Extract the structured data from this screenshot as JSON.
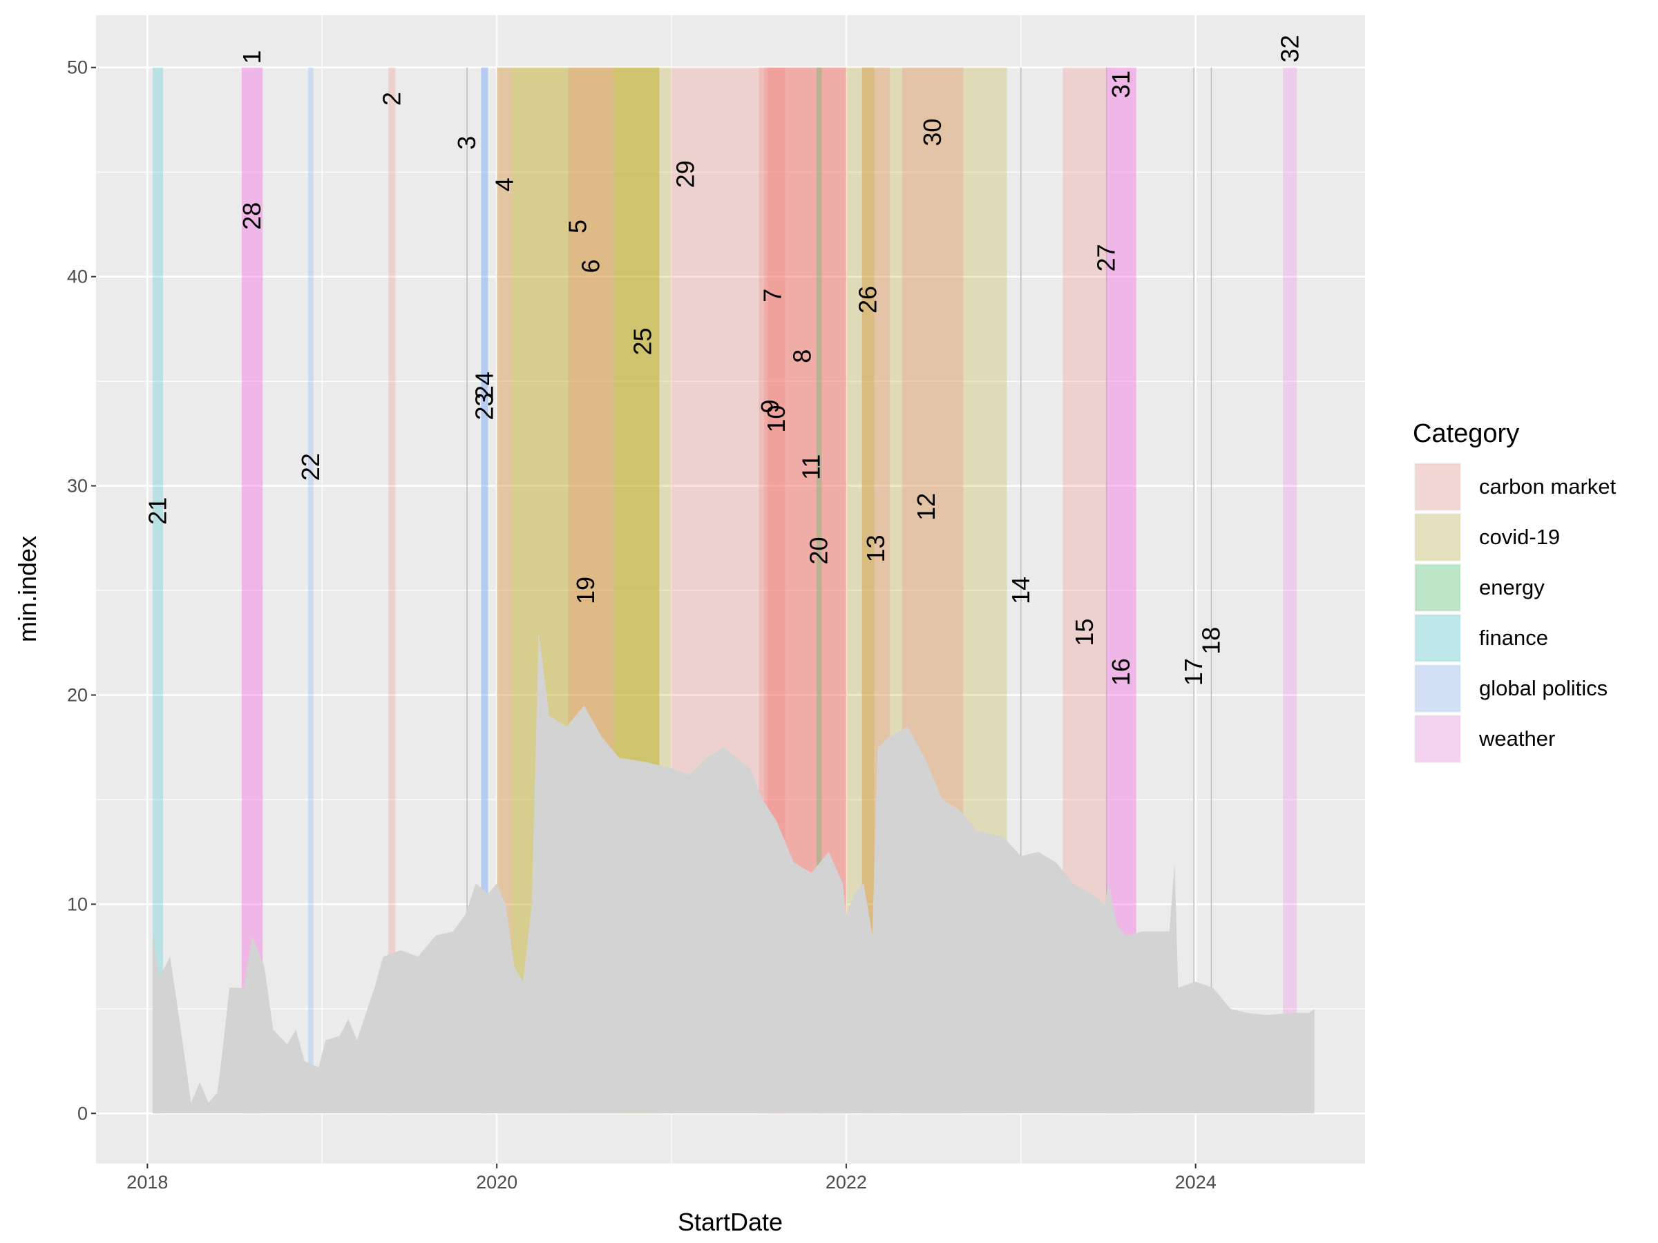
{
  "chart_data": {
    "type": "area",
    "x_label": "StartDate",
    "y_label": "min.index",
    "xlim": [
      2017.706,
      2024.97
    ],
    "ylim": [
      -2.4,
      52.5
    ],
    "xticks": [
      2018,
      2020,
      2022,
      2024
    ],
    "yticks": [
      0,
      10,
      20,
      30,
      40,
      50
    ],
    "grid": true,
    "legend_title": "Category",
    "legend_position": "right",
    "legend": [
      {
        "name": "carbon market",
        "color": "#F8766D"
      },
      {
        "name": "covid-19",
        "color": "#B79F00"
      },
      {
        "name": "energy",
        "color": "#00BA38"
      },
      {
        "name": "finance",
        "color": "#00BFC4"
      },
      {
        "name": "global politics",
        "color": "#619CFF"
      },
      {
        "name": "weather",
        "color": "#F564E3"
      }
    ],
    "area": {
      "color": "#d3d3d3",
      "x": [
        2018.03,
        2018.07,
        2018.13,
        2018.2,
        2018.25,
        2018.3,
        2018.35,
        2018.4,
        2018.43,
        2018.47,
        2018.55,
        2018.6,
        2018.67,
        2018.72,
        2018.8,
        2018.85,
        2018.9,
        2018.98,
        2019.02,
        2019.1,
        2019.15,
        2019.2,
        2019.3,
        2019.35,
        2019.45,
        2019.55,
        2019.65,
        2019.75,
        2019.82,
        2019.88,
        2019.95,
        2020.0,
        2020.05,
        2020.1,
        2020.15,
        2020.2,
        2020.24,
        2020.3,
        2020.4,
        2020.5,
        2020.6,
        2020.7,
        2020.85,
        2021.0,
        2021.1,
        2021.2,
        2021.3,
        2021.45,
        2021.52,
        2021.6,
        2021.7,
        2021.8,
        2021.9,
        2021.98,
        2022.0,
        2022.05,
        2022.1,
        2022.15,
        2022.18,
        2022.25,
        2022.35,
        2022.45,
        2022.55,
        2022.65,
        2022.75,
        2022.9,
        2023.0,
        2023.1,
        2023.2,
        2023.3,
        2023.4,
        2023.48,
        2023.5,
        2023.55,
        2023.6,
        2023.7,
        2023.85,
        2023.88,
        2023.9,
        2024.0,
        2024.1,
        2024.2,
        2024.3,
        2024.4,
        2024.55,
        2024.65,
        2024.68
      ],
      "values": [
        8.5,
        6.5,
        7.5,
        3.5,
        0.5,
        1.5,
        0.5,
        1,
        3,
        6,
        6,
        8.5,
        7,
        4,
        3.3,
        4,
        2.5,
        2.2,
        3.5,
        3.7,
        4.5,
        3.5,
        6,
        7.5,
        7.8,
        7.5,
        8.5,
        8.7,
        9.5,
        11,
        10.5,
        11,
        10,
        7,
        6.3,
        10,
        23,
        19,
        18.5,
        19.5,
        18,
        17,
        16.8,
        16.5,
        16.2,
        17,
        17.5,
        16.5,
        15,
        14,
        12,
        11.5,
        12.5,
        11,
        9.5,
        10.5,
        11,
        8.5,
        17.5,
        18,
        18.5,
        17,
        15,
        14.5,
        13.5,
        13.2,
        12.3,
        12.5,
        12,
        11,
        10.5,
        10,
        11,
        9,
        8.5,
        8.7,
        8.7,
        12,
        6,
        6.3,
        6,
        5,
        4.8,
        4.7,
        4.8,
        4.8,
        5
      ]
    },
    "events": [
      {
        "label": "21",
        "start": 2018.03,
        "end": 2018.09,
        "category": "finance",
        "label_y": 28.8
      },
      {
        "label": "1",
        "start": 2018.54,
        "end": 2018.66,
        "category": "weather",
        "label_y": 50.5
      },
      {
        "label": "28",
        "start": 2018.54,
        "end": 2018.66,
        "category": "weather",
        "label_y": 42.9
      },
      {
        "label": "22",
        "start": 2018.92,
        "end": 2018.95,
        "category": "global politics",
        "label_y": 30.9
      },
      {
        "label": "2",
        "start": 2019.38,
        "end": 2019.42,
        "category": "carbon market",
        "label_y": 48.5
      },
      {
        "label": "3",
        "start": 2019.83,
        "end": 2019.83,
        "label_y": 46.4
      },
      {
        "label": "23",
        "start": 2019.91,
        "end": 2019.95,
        "category": "global politics",
        "label_y": 33.8
      },
      {
        "label": "24",
        "start": 2019.91,
        "end": 2019.95,
        "category": "global politics",
        "label_y": 34.8
      },
      {
        "label": "4",
        "start": 2020.0,
        "end": 2020.09,
        "category": "carbon market",
        "label_y": 44.4
      },
      {
        "label": "5",
        "start": 2020.0,
        "end": 2020.93,
        "category": "covid-19",
        "label_y": 42.4
      },
      {
        "label": "19",
        "start": 2020.09,
        "end": 2020.93,
        "category": "covid-19",
        "label_y": 25.0
      },
      {
        "label": "6",
        "start": 2020.41,
        "end": 2020.67,
        "category": "carbon market",
        "label_y": 40.5
      },
      {
        "label": "25",
        "start": 2020.67,
        "end": 2021.0,
        "category": "covid-19",
        "label_y": 36.9
      },
      {
        "label": "29",
        "start": 2021.0,
        "end": 2021.16,
        "category": "carbon market",
        "label_y": 44.9
      },
      {
        "label": "7",
        "start": 2021.16,
        "end": 2022.0,
        "category": "carbon market",
        "label_y": 39.1
      },
      {
        "label": "8",
        "start": 2021.5,
        "end": 2022.0,
        "category": "carbon market",
        "label_y": 36.2
      },
      {
        "label": "9",
        "start": 2021.53,
        "end": 2021.6,
        "category": "carbon market",
        "label_y": 33.8
      },
      {
        "label": "10",
        "start": 2021.55,
        "end": 2021.65,
        "category": "carbon market",
        "label_y": 33.2
      },
      {
        "label": "11",
        "start": 2021.6,
        "end": 2022.0,
        "category": "carbon market",
        "label_y": 30.9
      },
      {
        "label": "20",
        "start": 2021.83,
        "end": 2021.86,
        "category": "energy",
        "label_y": 26.9
      },
      {
        "label": "12",
        "start": 2022.0,
        "end": 2022.92,
        "category": "covid-19",
        "label_y": 29.0
      },
      {
        "label": "13",
        "start": 2022.09,
        "end": 2022.25,
        "category": "carbon market",
        "label_y": 27.0
      },
      {
        "label": "26",
        "start": 2022.09,
        "end": 2022.16,
        "category": "covid-19",
        "label_y": 38.9
      },
      {
        "label": "30",
        "start": 2022.32,
        "end": 2022.67,
        "category": "carbon market",
        "label_y": 46.9
      },
      {
        "label": "14",
        "start": 2023.0,
        "end": 2023.0,
        "label_y": 25.0
      },
      {
        "label": "15",
        "start": 2023.24,
        "end": 2023.49,
        "category": "carbon market",
        "label_y": 23.0
      },
      {
        "label": "27",
        "start": 2023.49,
        "end": 2023.49,
        "label_y": 40.9
      },
      {
        "label": "31",
        "start": 2023.49,
        "end": 2023.66,
        "category": "weather",
        "label_y": 49.2
      },
      {
        "label": "16",
        "start": 2023.49,
        "end": 2023.66,
        "category": "weather",
        "label_y": 21.1
      },
      {
        "label": "17",
        "start": 2023.99,
        "end": 2023.99,
        "label_y": 21.1
      },
      {
        "label": "18",
        "start": 2024.09,
        "end": 2024.09,
        "label_y": 22.6
      },
      {
        "label": "32",
        "start": 2024.5,
        "end": 2024.58,
        "category": "weather",
        "label_y": 50.9
      }
    ]
  }
}
